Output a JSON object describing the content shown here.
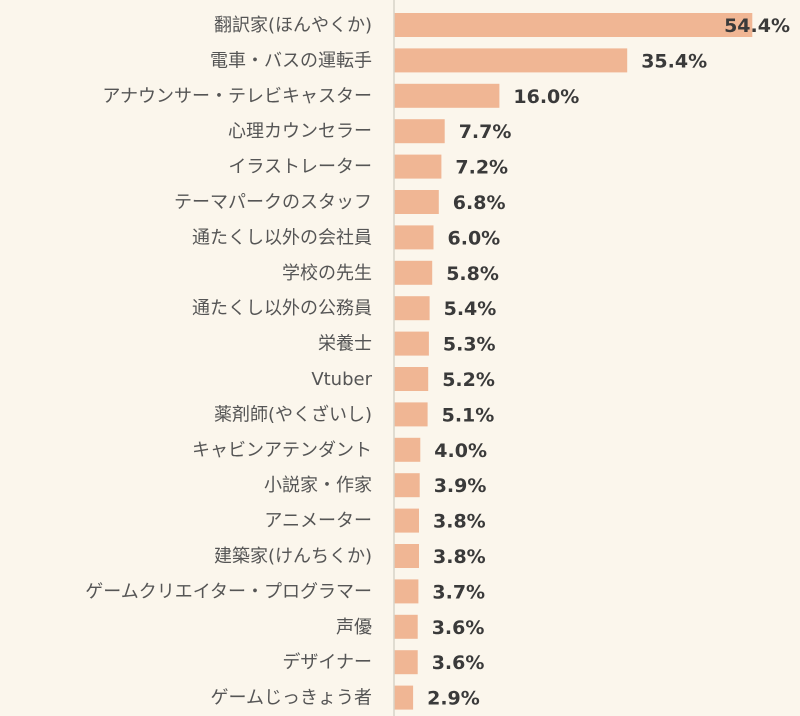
{
  "chart_data": {
    "type": "bar",
    "orientation": "horizontal",
    "bar_color": "#f0b694",
    "axis_color": "#d8d3c8",
    "background": "#fbf6ec",
    "value_suffix": "%",
    "categories": [
      "翻訳家(ほんやくか)",
      "電車・バスの運転手",
      "アナウンサー・テレビキャスター",
      "心理カウンセラー",
      "イラストレーター",
      "テーマパークのスタッフ",
      "通たくし以外の会社員",
      "学校の先生",
      "通たくし以外の公務員",
      "栄養士",
      "Vtuber",
      "薬剤師(やくざいし)",
      "キャビンアテンダント",
      "小説家・作家",
      "アニメーター",
      "建築家(けんちくか)",
      "ゲームクリエイター・プログラマー",
      "声優",
      "デザイナー",
      "ゲームじっきょう者"
    ],
    "values": [
      54.4,
      35.4,
      16.0,
      7.7,
      7.2,
      6.8,
      6.0,
      5.8,
      5.4,
      5.3,
      5.2,
      5.1,
      4.0,
      3.9,
      3.8,
      3.8,
      3.7,
      3.6,
      3.6,
      2.9
    ],
    "value_labels": [
      "54.4%",
      "35.4%",
      "16.0%",
      "7.7%",
      "7.2%",
      "6.8%",
      "6.0%",
      "5.8%",
      "5.4%",
      "5.3%",
      "5.2%",
      "5.1%",
      "4.0%",
      "3.9%",
      "3.8%",
      "3.8%",
      "3.7%",
      "3.6%",
      "3.6%",
      "2.9%"
    ],
    "xlim": [
      0,
      58
    ],
    "grid": false,
    "legend": "none"
  }
}
